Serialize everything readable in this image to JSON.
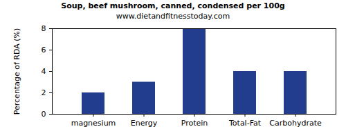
{
  "chart_data": {
    "type": "bar",
    "title": "Soup, beef mushroom, canned, condensed per 100g",
    "subtitle": "www.dietandfitnesstoday.com",
    "ylabel": "Percentage of RDA (%)",
    "categories": [
      "magnesium",
      "Energy",
      "Protein",
      "Total-Fat",
      "Carbohydrate"
    ],
    "values": [
      2,
      3,
      8,
      4,
      4
    ],
    "color": "#233d8e",
    "ylim": [
      0,
      8
    ],
    "yticks": [
      0,
      2,
      4,
      6,
      8
    ],
    "grid": false
  }
}
